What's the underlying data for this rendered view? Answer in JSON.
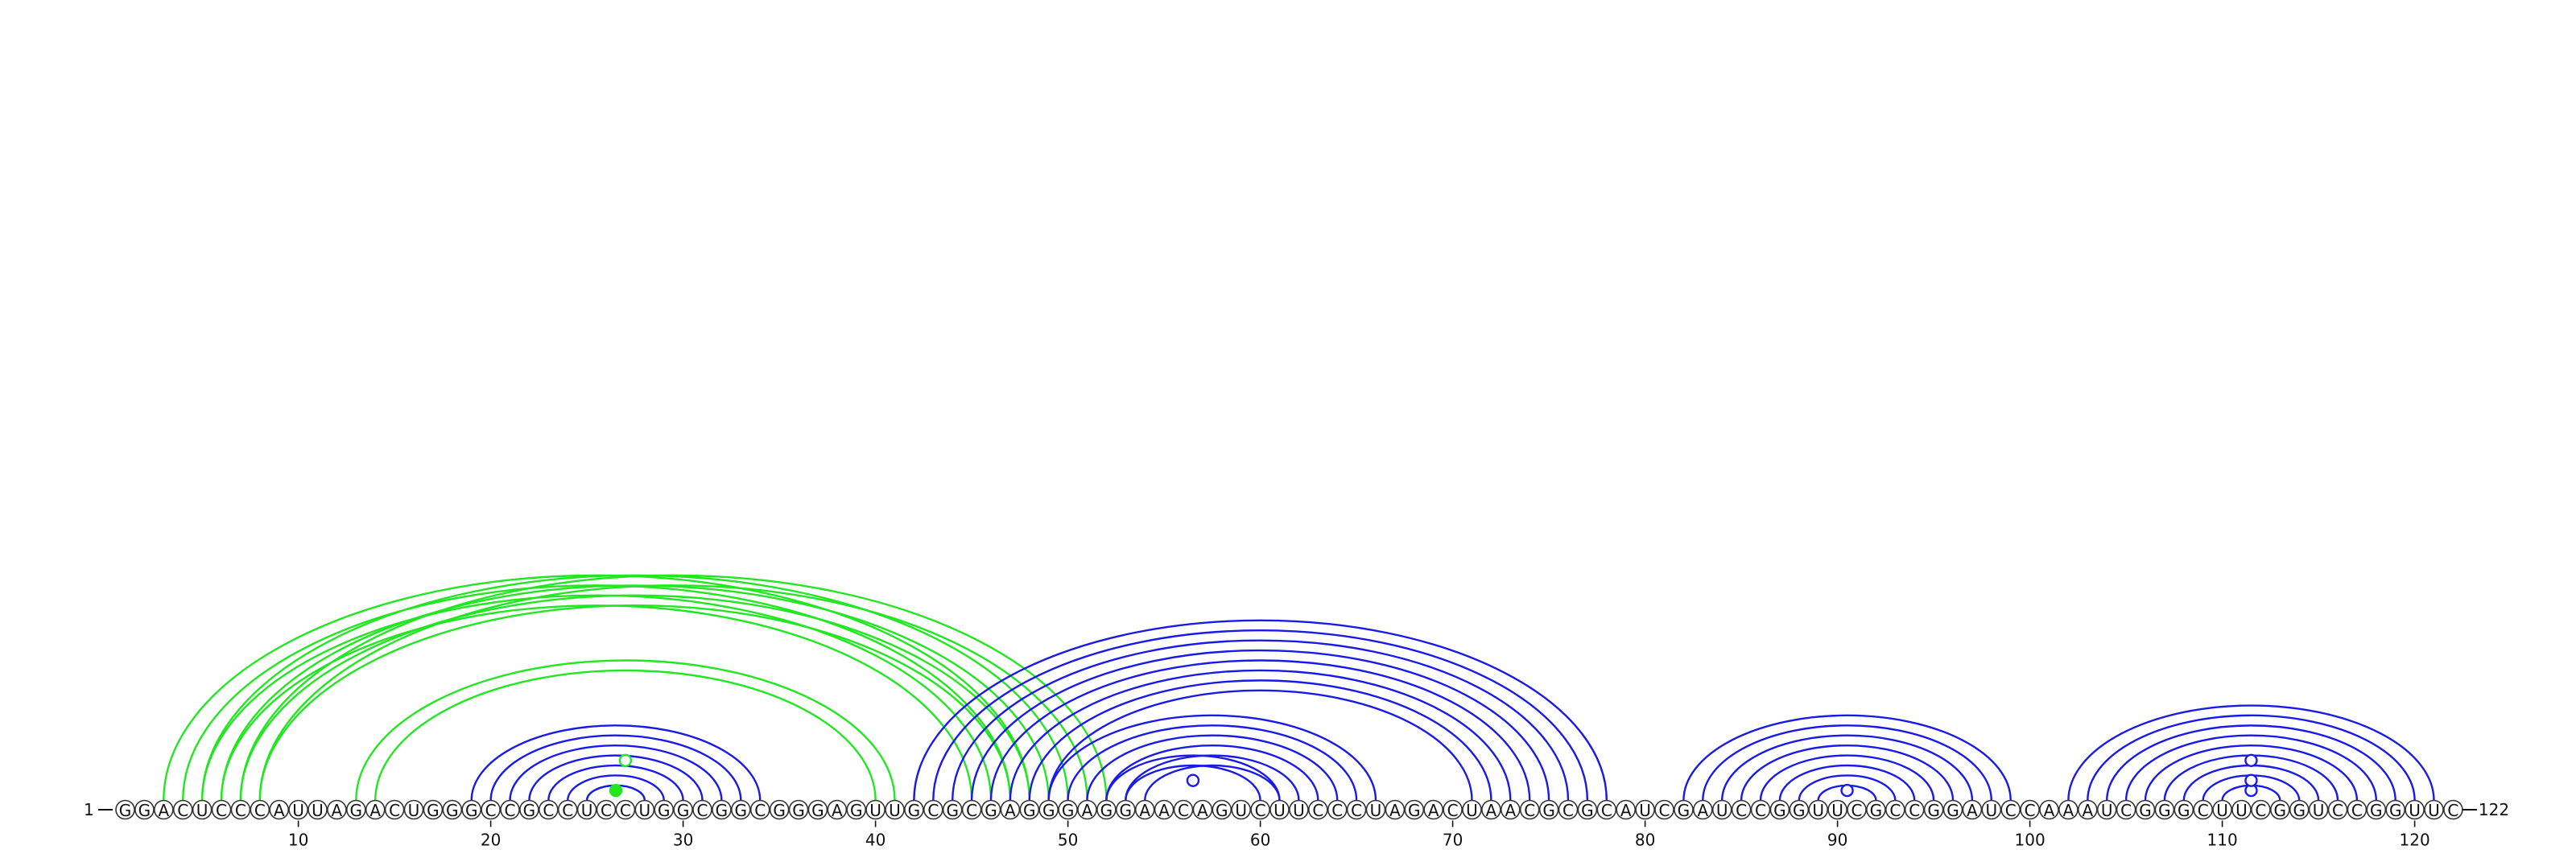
{
  "sequence": "GGACUCCCAUUAGACUGGGCCGCCUCCUGGCGGCGGGAGUUGCGCGAGGGAGGAACAGUCUUCCCUAGACUAACGCGCAUCGAUCCGGUUCGCCGGAUCCAAAUCGGGCUUCGGUCCGGUUC",
  "start_label": "1",
  "end_label": "122",
  "ticks": [
    "10",
    "20",
    "30",
    "40",
    "50",
    "60",
    "70",
    "80",
    "90",
    "100",
    "110",
    "120"
  ],
  "colors": {
    "blue": "#1a1ae6",
    "green": "#22e622"
  },
  "helices": [
    {
      "color": "green",
      "i": 3,
      "j": 48,
      "len": 4
    },
    {
      "color": "green",
      "i": 5,
      "j": 50,
      "len": 4
    },
    {
      "color": "green",
      "i": 7,
      "j": 52,
      "len": 2
    },
    {
      "color": "green",
      "i": 13,
      "j": 41,
      "len": 1
    },
    {
      "color": "green",
      "i": 14,
      "j": 40,
      "len": 1
    },
    {
      "color": "green",
      "i": 25,
      "j": 28,
      "len": 1
    },
    {
      "color": "blue",
      "i": 19,
      "j": 34,
      "len": 7
    },
    {
      "color": "blue",
      "i": 42,
      "j": 78,
      "len": 8
    },
    {
      "color": "blue",
      "i": 52,
      "j": 61,
      "len": 2
    },
    {
      "color": "blue",
      "i": 49,
      "j": 66,
      "len": 6
    },
    {
      "color": "blue",
      "i": 82,
      "j": 99,
      "len": 8
    },
    {
      "color": "blue",
      "i": 102,
      "j": 121,
      "len": 9
    }
  ],
  "markers": [
    {
      "pos": 26.5,
      "color": "green",
      "level": 1,
      "filled": true
    },
    {
      "pos": 27.0,
      "color": "green",
      "level": 4,
      "filled": false
    },
    {
      "pos": 56.5,
      "color": "blue",
      "level": 2,
      "filled": false
    },
    {
      "pos": 90.5,
      "color": "blue",
      "level": 1,
      "filled": false
    },
    {
      "pos": 111.5,
      "color": "blue",
      "level": 1,
      "filled": false
    },
    {
      "pos": 111.5,
      "color": "blue",
      "level": 2,
      "filled": false
    },
    {
      "pos": 111.5,
      "color": "blue",
      "level": 4,
      "filled": false
    }
  ]
}
